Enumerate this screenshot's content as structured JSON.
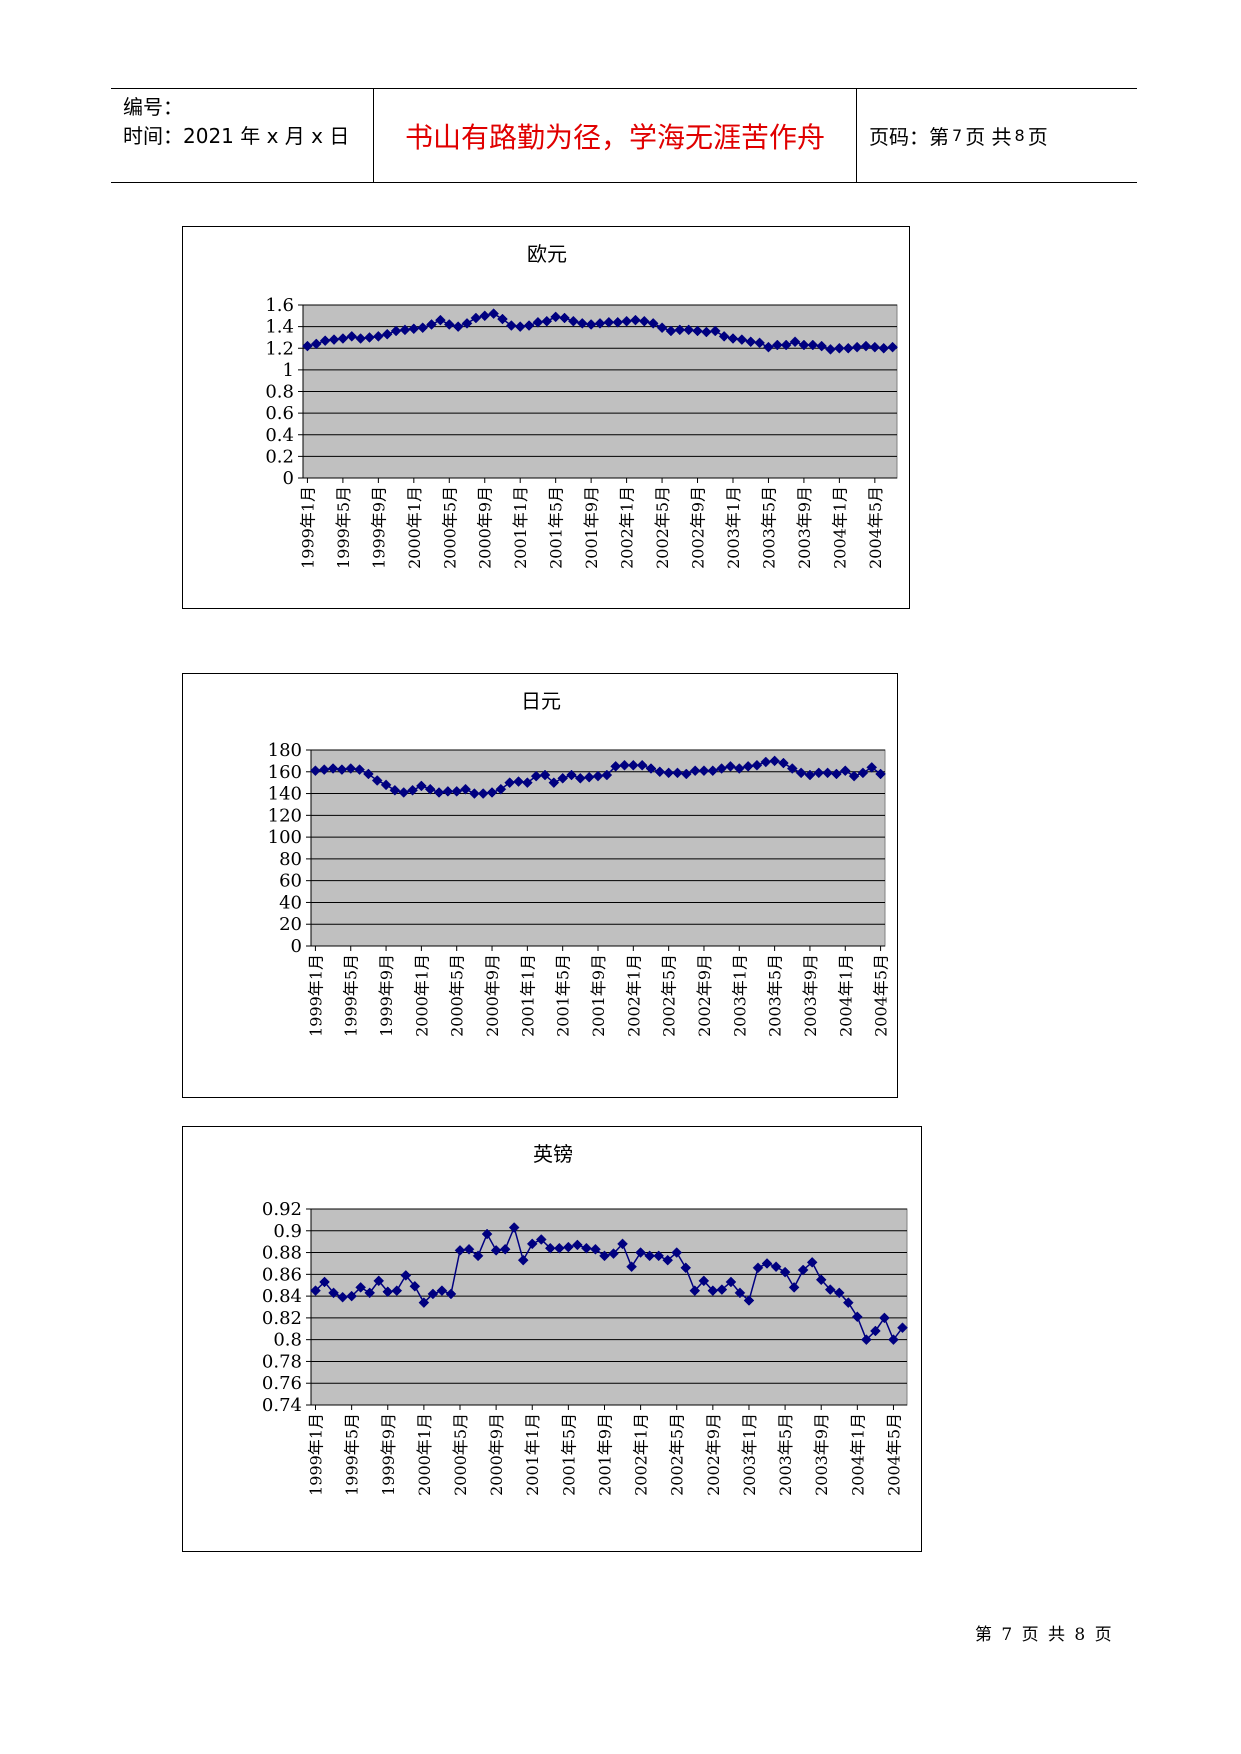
{
  "header": {
    "serial_label": "编号：",
    "time_label": "时间：2021 年 x 月 x 日",
    "motto": "书山有路勤为径，学海无涯苦作舟",
    "page_prefix": "页码：第",
    "page_num": "7",
    "page_mid": "页 共",
    "page_total": "8",
    "page_suffix": "页"
  },
  "footer": {
    "text": "第 7 页 共 8 页"
  },
  "colors": {
    "plot_bg": "#c0c0c0",
    "series": "#000080",
    "grid": "#000000"
  },
  "x_labels": [
    "1999年1月",
    "1999年5月",
    "1999年9月",
    "2000年1月",
    "2000年5月",
    "2000年9月",
    "2001年1月",
    "2001年5月",
    "2001年9月",
    "2002年1月",
    "2002年5月",
    "2002年9月",
    "2003年1月",
    "2003年5月",
    "2003年9月",
    "2004年1月",
    "2004年5月"
  ],
  "chart_data": [
    {
      "type": "line",
      "title": "欧元",
      "ylim": [
        0,
        1.6
      ],
      "yticks": [
        "0",
        "0.2",
        "0.4",
        "0.6",
        "0.8",
        "1",
        "1.2",
        "1.4",
        "1.6"
      ],
      "grid": true,
      "series": [
        {
          "values": [
            1.22,
            1.24,
            1.27,
            1.28,
            1.29,
            1.31,
            1.29,
            1.3,
            1.31,
            1.33,
            1.36,
            1.37,
            1.38,
            1.39,
            1.42,
            1.46,
            1.42,
            1.4,
            1.43,
            1.48,
            1.5,
            1.52,
            1.47,
            1.41,
            1.4,
            1.41,
            1.44,
            1.45,
            1.49,
            1.48,
            1.45,
            1.43,
            1.42,
            1.43,
            1.44,
            1.44,
            1.45,
            1.46,
            1.45,
            1.43,
            1.39,
            1.36,
            1.37,
            1.37,
            1.36,
            1.35,
            1.36,
            1.31,
            1.29,
            1.28,
            1.26,
            1.25,
            1.21,
            1.23,
            1.23,
            1.26,
            1.23,
            1.23,
            1.22,
            1.19,
            1.2,
            1.2,
            1.21,
            1.22,
            1.21,
            1.2,
            1.21
          ]
        }
      ]
    },
    {
      "type": "line",
      "title": "日元",
      "ylim": [
        0,
        180
      ],
      "yticks": [
        "0",
        "20",
        "40",
        "60",
        "80",
        "100",
        "120",
        "140",
        "160",
        "180"
      ],
      "grid": true,
      "series": [
        {
          "values": [
            161,
            162,
            163,
            162,
            163,
            162,
            158,
            152,
            148,
            143,
            141,
            143,
            147,
            144,
            141,
            142,
            142,
            144,
            140,
            140,
            141,
            144,
            150,
            151,
            150,
            156,
            157,
            150,
            154,
            157,
            154,
            155,
            156,
            157,
            165,
            166,
            166,
            166,
            163,
            160,
            159,
            159,
            158,
            161,
            161,
            161,
            163,
            165,
            163,
            165,
            166,
            169,
            170,
            168,
            163,
            159,
            157,
            159,
            159,
            158,
            161,
            156,
            159,
            164,
            158
          ]
        }
      ]
    },
    {
      "type": "line",
      "title": "英镑",
      "ylim": [
        0.74,
        0.92
      ],
      "yticks": [
        "0.74",
        "0.76",
        "0.78",
        "0.8",
        "0.82",
        "0.84",
        "0.86",
        "0.88",
        "0.9",
        "0.92"
      ],
      "grid": true,
      "series": [
        {
          "values": [
            0.845,
            0.853,
            0.843,
            0.839,
            0.84,
            0.848,
            0.843,
            0.854,
            0.844,
            0.845,
            0.859,
            0.849,
            0.834,
            0.842,
            0.845,
            0.842,
            0.882,
            0.883,
            0.877,
            0.897,
            0.882,
            0.883,
            0.903,
            0.873,
            0.888,
            0.892,
            0.884,
            0.884,
            0.885,
            0.887,
            0.884,
            0.883,
            0.877,
            0.879,
            0.888,
            0.867,
            0.88,
            0.877,
            0.877,
            0.873,
            0.88,
            0.866,
            0.845,
            0.854,
            0.845,
            0.846,
            0.853,
            0.843,
            0.836,
            0.866,
            0.87,
            0.867,
            0.862,
            0.848,
            0.864,
            0.871,
            0.855,
            0.846,
            0.843,
            0.834,
            0.821,
            0.8,
            0.808,
            0.82,
            0.8,
            0.811
          ]
        }
      ]
    }
  ]
}
